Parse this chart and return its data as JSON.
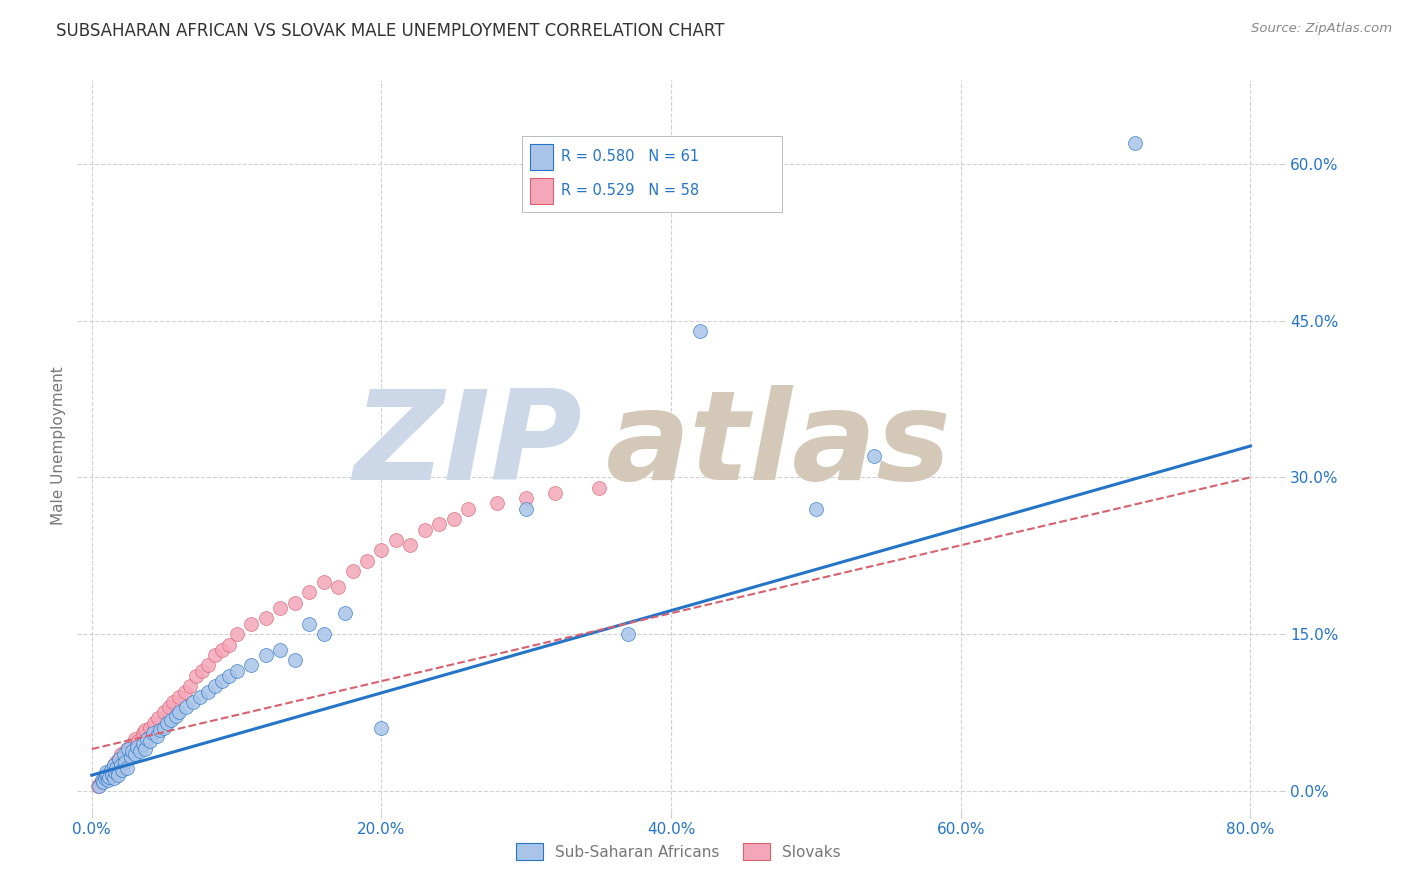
{
  "title": "SUBSAHARAN AFRICAN VS SLOVAK MALE UNEMPLOYMENT CORRELATION CHART",
  "source": "Source: ZipAtlas.com",
  "ylabel_label": "Male Unemployment",
  "legend_labels": [
    "Sub-Saharan Africans",
    "Slovaks"
  ],
  "r_blue": 0.58,
  "n_blue": 61,
  "r_pink": 0.529,
  "n_pink": 58,
  "color_blue": "#aac4e8",
  "color_pink": "#f4a7b9",
  "line_blue": "#2474c7",
  "line_pink": "#d9606e",
  "watermark_zip": "ZIP",
  "watermark_atlas": "atlas",
  "watermark_color_zip": "#ccd8e8",
  "watermark_color_atlas": "#d4c8b8",
  "xlim": [
    -0.01,
    0.82
  ],
  "ylim": [
    -0.02,
    0.68
  ],
  "xticks": [
    0.0,
    0.2,
    0.4,
    0.6,
    0.8
  ],
  "yticks": [
    0.0,
    0.15,
    0.3,
    0.45,
    0.6
  ],
  "xtick_labels": [
    "0.0%",
    "20.0%",
    "40.0%",
    "60.0%",
    "80.0%"
  ],
  "ytick_labels": [
    "0.0%",
    "15.0%",
    "30.0%",
    "45.0%",
    "60.0%"
  ],
  "blue_scatter_x": [
    0.005,
    0.007,
    0.008,
    0.009,
    0.01,
    0.01,
    0.011,
    0.012,
    0.013,
    0.014,
    0.015,
    0.015,
    0.016,
    0.017,
    0.018,
    0.019,
    0.02,
    0.021,
    0.022,
    0.023,
    0.024,
    0.025,
    0.027,
    0.028,
    0.03,
    0.031,
    0.033,
    0.035,
    0.037,
    0.038,
    0.04,
    0.042,
    0.045,
    0.047,
    0.05,
    0.052,
    0.055,
    0.058,
    0.06,
    0.065,
    0.07,
    0.075,
    0.08,
    0.085,
    0.09,
    0.095,
    0.1,
    0.11,
    0.12,
    0.13,
    0.14,
    0.15,
    0.16,
    0.175,
    0.2,
    0.3,
    0.37,
    0.42,
    0.5,
    0.54,
    0.72
  ],
  "blue_scatter_y": [
    0.005,
    0.01,
    0.008,
    0.012,
    0.015,
    0.018,
    0.01,
    0.013,
    0.02,
    0.015,
    0.012,
    0.025,
    0.018,
    0.022,
    0.015,
    0.03,
    0.025,
    0.02,
    0.035,
    0.028,
    0.022,
    0.04,
    0.032,
    0.038,
    0.035,
    0.042,
    0.038,
    0.045,
    0.04,
    0.05,
    0.048,
    0.055,
    0.052,
    0.058,
    0.06,
    0.065,
    0.068,
    0.072,
    0.075,
    0.08,
    0.085,
    0.09,
    0.095,
    0.1,
    0.105,
    0.11,
    0.115,
    0.12,
    0.13,
    0.135,
    0.125,
    0.16,
    0.15,
    0.17,
    0.06,
    0.27,
    0.15,
    0.44,
    0.27,
    0.32,
    0.62
  ],
  "pink_scatter_x": [
    0.004,
    0.006,
    0.008,
    0.01,
    0.011,
    0.012,
    0.013,
    0.014,
    0.015,
    0.016,
    0.017,
    0.018,
    0.019,
    0.02,
    0.022,
    0.024,
    0.026,
    0.028,
    0.03,
    0.032,
    0.035,
    0.037,
    0.04,
    0.043,
    0.046,
    0.05,
    0.053,
    0.056,
    0.06,
    0.064,
    0.068,
    0.072,
    0.076,
    0.08,
    0.085,
    0.09,
    0.095,
    0.1,
    0.11,
    0.12,
    0.13,
    0.14,
    0.15,
    0.16,
    0.17,
    0.18,
    0.19,
    0.2,
    0.21,
    0.22,
    0.23,
    0.24,
    0.25,
    0.26,
    0.28,
    0.3,
    0.32,
    0.35
  ],
  "pink_scatter_y": [
    0.005,
    0.008,
    0.01,
    0.015,
    0.012,
    0.018,
    0.02,
    0.015,
    0.025,
    0.022,
    0.028,
    0.025,
    0.03,
    0.035,
    0.032,
    0.04,
    0.038,
    0.045,
    0.05,
    0.048,
    0.055,
    0.058,
    0.06,
    0.065,
    0.07,
    0.075,
    0.08,
    0.085,
    0.09,
    0.095,
    0.1,
    0.11,
    0.115,
    0.12,
    0.13,
    0.135,
    0.14,
    0.15,
    0.16,
    0.165,
    0.175,
    0.18,
    0.19,
    0.2,
    0.195,
    0.21,
    0.22,
    0.23,
    0.24,
    0.235,
    0.25,
    0.255,
    0.26,
    0.27,
    0.275,
    0.28,
    0.285,
    0.29
  ],
  "blue_line_x": [
    0.0,
    0.8
  ],
  "blue_line_y": [
    0.015,
    0.33
  ],
  "pink_line_x": [
    0.0,
    0.8
  ],
  "pink_line_y": [
    0.04,
    0.3
  ],
  "grid_color": "#cccccc",
  "background_color": "#ffffff",
  "title_color": "#333333",
  "tick_color": "#2474c7",
  "label_color": "#777777",
  "title_fontsize": 12,
  "source_color": "#888888"
}
